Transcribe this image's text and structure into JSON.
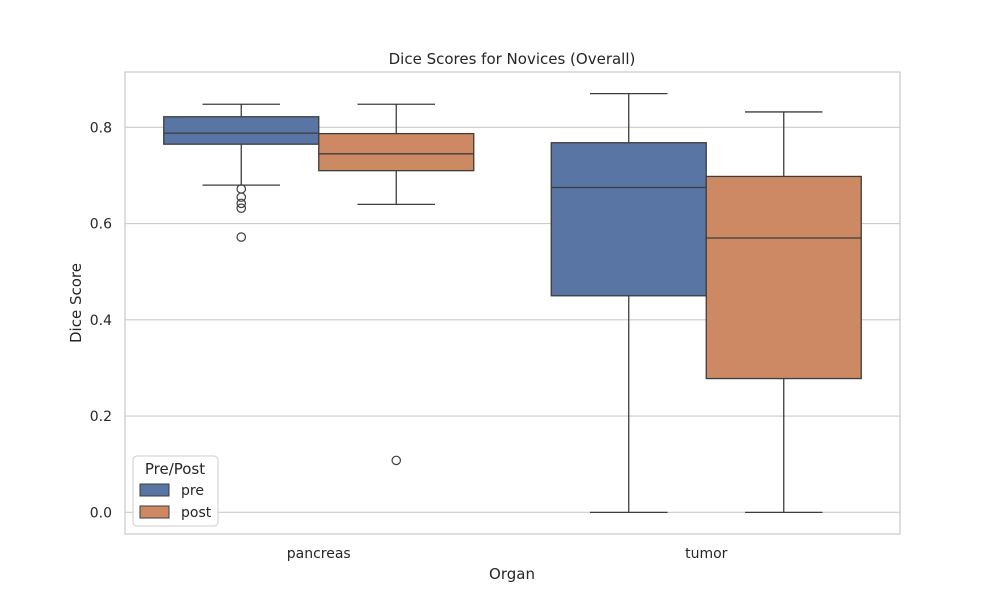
{
  "chart_data": {
    "type": "boxplot",
    "title": "Dice Scores for Novices (Overall)",
    "xlabel": "Organ",
    "ylabel": "Dice Score",
    "categories": [
      "pancreas",
      "tumor"
    ],
    "ylim": [
      -0.045,
      0.915
    ],
    "yticks": [
      0.0,
      0.2,
      0.4,
      0.6,
      0.8
    ],
    "ytick_labels": [
      "0.0",
      "0.2",
      "0.4",
      "0.6",
      "0.8"
    ],
    "grid": true,
    "legend": {
      "title": "Pre/Post",
      "placement": "lower-left"
    },
    "series": [
      {
        "name": "pre",
        "color": "#5875a4",
        "boxes": [
          {
            "category": "pancreas",
            "whisker_low": 0.68,
            "q1": 0.765,
            "median": 0.788,
            "q3": 0.822,
            "whisker_high": 0.848,
            "outliers": [
              0.672,
              0.655,
              0.642,
              0.632,
              0.572
            ]
          },
          {
            "category": "tumor",
            "whisker_low": 0.0,
            "q1": 0.45,
            "median": 0.675,
            "q3": 0.768,
            "whisker_high": 0.87,
            "outliers": []
          }
        ]
      },
      {
        "name": "post",
        "color": "#cc8963",
        "boxes": [
          {
            "category": "pancreas",
            "whisker_low": 0.64,
            "q1": 0.71,
            "median": 0.745,
            "q3": 0.787,
            "whisker_high": 0.848,
            "outliers": [
              0.108
            ]
          },
          {
            "category": "tumor",
            "whisker_low": 0.0,
            "q1": 0.278,
            "median": 0.57,
            "q3": 0.698,
            "whisker_high": 0.832,
            "outliers": []
          }
        ]
      }
    ]
  }
}
